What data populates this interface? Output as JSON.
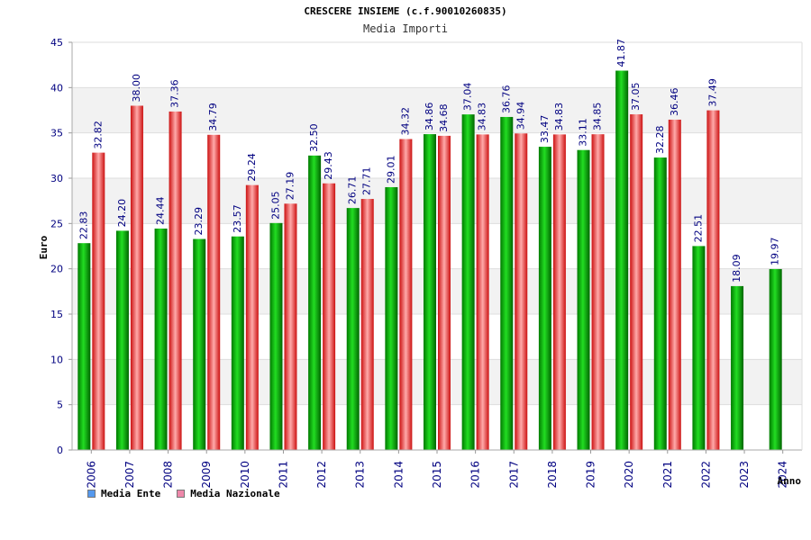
{
  "title": "CRESCERE INSIEME (c.f.90010260835)",
  "subtitle": "Media Importi",
  "legend": {
    "ente_label": "Media Ente",
    "nazionale_label": "Media Nazionale",
    "ente_color": "#5599ee",
    "nazionale_color": "#ee88aa"
  },
  "chart_data": {
    "type": "bar",
    "title": "CRESCERE INSIEME (c.f.90010260835)",
    "subtitle": "Media Importi",
    "xlabel": "Anno",
    "ylabel": "Euro",
    "ylim": [
      0,
      45
    ],
    "yticks": [
      0,
      5,
      10,
      15,
      20,
      25,
      30,
      35,
      40,
      45
    ],
    "categories": [
      "2006",
      "2007",
      "2008",
      "2009",
      "2010",
      "2011",
      "2012",
      "2013",
      "2014",
      "2015",
      "2016",
      "2017",
      "2018",
      "2019",
      "2020",
      "2021",
      "2022",
      "2023",
      "2024"
    ],
    "series": [
      {
        "name": "Media Ente",
        "color": "#00aa00",
        "values": [
          22.83,
          24.2,
          24.44,
          23.29,
          23.57,
          25.05,
          32.5,
          26.71,
          29.01,
          34.86,
          37.04,
          36.76,
          33.47,
          33.11,
          41.87,
          32.28,
          22.51,
          18.09,
          19.97
        ]
      },
      {
        "name": "Media Nazionale",
        "color": "#dd2222",
        "values": [
          32.82,
          38.0,
          37.36,
          34.79,
          29.24,
          27.19,
          29.43,
          27.71,
          34.32,
          34.68,
          34.83,
          34.94,
          34.83,
          34.85,
          37.05,
          36.46,
          37.49,
          null,
          null
        ]
      }
    ],
    "value_labels": [
      [
        "22.83",
        "24.20",
        "24.44",
        "23.29",
        "23.57",
        "25.05",
        "32.50",
        "26.71",
        "29.01",
        "34.86",
        "37.04",
        "36.76",
        "33.47",
        "33.11",
        "41.87",
        "32.28",
        "22.51",
        "18.09",
        "19.97"
      ],
      [
        "32.82",
        "38.00",
        "37.36",
        "34.79",
        "29.24",
        "27.19",
        "29.43",
        "27.71",
        "34.32",
        "34.68",
        "34.83",
        "34.94",
        "34.83",
        "34.85",
        "37.05",
        "36.46",
        "37.49",
        null,
        null
      ]
    ],
    "grid": true,
    "legend_position": "bottom-left"
  }
}
